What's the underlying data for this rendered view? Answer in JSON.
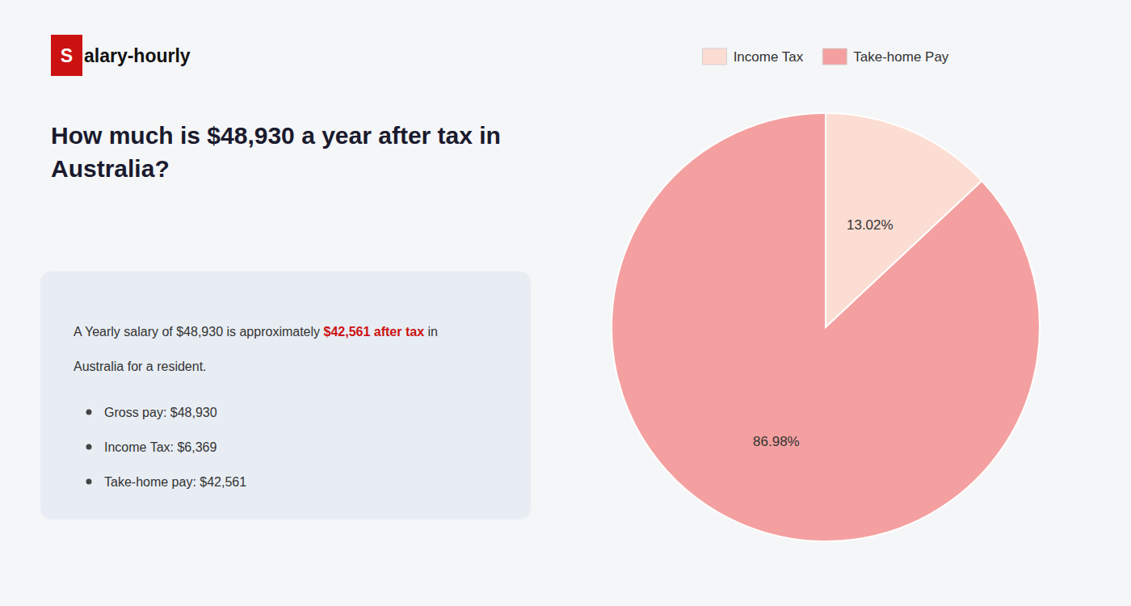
{
  "chart_data": {
    "type": "pie",
    "title": "How much is $48,930 a year after tax in\nAustralia?",
    "categories": [
      "Income Tax",
      "Take-home Pay"
    ],
    "values": [
      13.02,
      86.98
    ],
    "value_labels": [
      "13.02%",
      "86.98%"
    ],
    "colors": [
      "#fcddd3",
      "#f4a0a0"
    ],
    "data_labels": true,
    "legend": "top",
    "annotations": [
      "S",
      "alary-hourly",
      "A Yearly salary of $48,930 is approximately ",
      "$42,561 after tax",
      " in",
      "Australia for a resident.",
      "Gross pay: $48,930",
      "Income Tax: $6,369",
      "Take-home pay: $42,561"
    ]
  }
}
